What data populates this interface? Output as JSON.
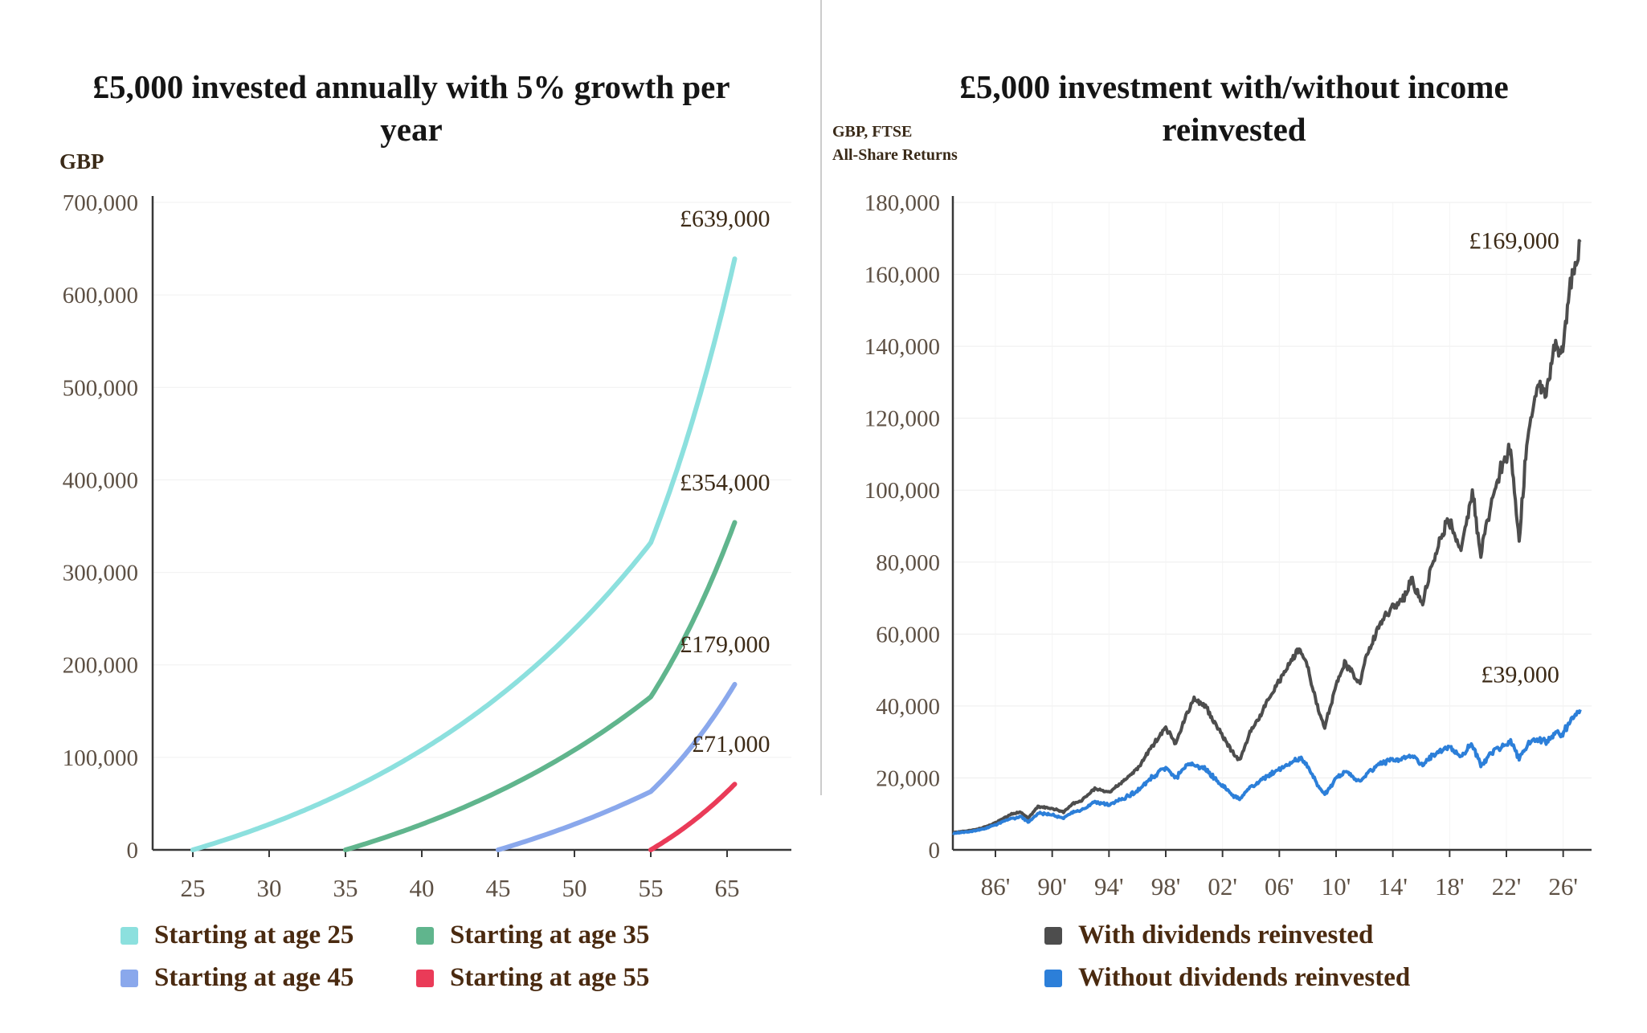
{
  "page": {
    "background": "#ffffff",
    "divider_color": "#cccccc",
    "text_color": "#151515",
    "tick_label_color": "#5d5044",
    "annotation_color": "#3c2a16",
    "legend_text_color": "#4a2a10",
    "axis_color": "#383838"
  },
  "chart_data": [
    {
      "type": "line",
      "title": "£5,000 invested annually with 5% growth per year",
      "unit_label": "GBP",
      "ylim": [
        0,
        700000
      ],
      "y_tick_values": [
        0,
        100000,
        200000,
        300000,
        400000,
        500000,
        600000,
        700000
      ],
      "y_tick_labels": [
        "0",
        "100,000",
        "200,000",
        "300,000",
        "400,000",
        "500,000",
        "600,000",
        "700,000"
      ],
      "x_tick_ages": [
        25,
        30,
        35,
        40,
        45,
        50,
        55,
        65
      ],
      "x_tick_labels": [
        "25",
        "30",
        "35",
        "40",
        "45",
        "50",
        "55",
        "65"
      ],
      "grid": "faint-horizontal",
      "legend_position": "bottom",
      "model": {
        "annual_contribution": 5000,
        "growth_rate": 0.05,
        "end_age": 66
      },
      "series": [
        {
          "name": "Starting at age 25",
          "color": "#8CE0DE",
          "start_age": 25,
          "end_value": 639000,
          "end_label": "£639,000"
        },
        {
          "name": "Starting at age 35",
          "color": "#60B58D",
          "start_age": 35,
          "end_value": 354000,
          "end_label": "£354,000"
        },
        {
          "name": "Starting at age 45",
          "color": "#8AA8EC",
          "start_age": 45,
          "end_value": 179000,
          "end_label": "£179,000"
        },
        {
          "name": "Starting at age 55",
          "color": "#EA3B58",
          "start_age": 55,
          "end_value": 71000,
          "end_label": "£71,000"
        }
      ]
    },
    {
      "type": "line",
      "title": "£5,000 investment with/without income reinvested",
      "unit_label_lines": [
        "GBP, FTSE",
        "All-Share Returns"
      ],
      "ylim": [
        0,
        180000
      ],
      "y_tick_values": [
        0,
        20000,
        40000,
        60000,
        80000,
        100000,
        120000,
        140000,
        160000,
        180000
      ],
      "y_tick_labels": [
        "0",
        "20,000",
        "40,000",
        "60,000",
        "80,000",
        "100,000",
        "120,000",
        "140,000",
        "160,000",
        "180,000"
      ],
      "x_tick_years": [
        1986,
        1990,
        1994,
        1998,
        2002,
        2006,
        2010,
        2014,
        2018,
        2022,
        2026
      ],
      "x_tick_labels": [
        "86'",
        "90'",
        "94'",
        "98'",
        "02'",
        "06'",
        "10'",
        "14'",
        "18'",
        "22'",
        "26'"
      ],
      "grid": "faint",
      "legend_position": "bottom",
      "series": [
        {
          "name": "With dividends reinvested",
          "color": "#4D4D4D",
          "end_value": 169000,
          "end_label": "£169,000",
          "points": {
            "x": [
              1983,
              1984,
              1985,
              1986,
              1987,
              1987.8,
              1988.3,
              1989,
              1990,
              1990.8,
              1991.5,
              1992,
              1993,
              1994,
              1995,
              1996,
              1997,
              1998,
              1998.7,
              1999.5,
              2000,
              2000.8,
              2001.8,
              2002.8,
              2003.2,
              2004,
              2005,
              2006,
              2007.4,
              2007.9,
              2008.9,
              2009.2,
              2010,
              2010.6,
              2011.7,
              2012,
              2013,
              2013.7,
              2014.8,
              2015.3,
              2016.1,
              2016.8,
              2017.9,
              2018.8,
              2019.6,
              2020.2,
              2020.9,
              2021.6,
              2022.3,
              2022.9,
              2023.5,
              2024.3,
              2024.8,
              2025.4,
              2025.9,
              2026.5,
              2027.2
            ],
            "y": [
              4800,
              5300,
              6000,
              7500,
              9800,
              10500,
              8800,
              12000,
              11500,
              10500,
              13000,
              13500,
              17000,
              16000,
              19000,
              22500,
              28500,
              34000,
              29500,
              38000,
              42000,
              40000,
              33000,
              26500,
              25000,
              33000,
              40000,
              47000,
              56000,
              52000,
              37000,
              34000,
              46000,
              52000,
              46000,
              52000,
              62000,
              66000,
              70000,
              75000,
              69000,
              80000,
              92000,
              83000,
              100000,
              82000,
              96000,
              106000,
              112000,
              86000,
              116000,
              130000,
              125000,
              142000,
              138000,
              156000,
              169000
            ]
          }
        },
        {
          "name": "Without dividends reinvested",
          "color": "#2C7FD9",
          "end_value": 39000,
          "end_label": "£39,000",
          "points": {
            "x": [
              1983,
              1984,
              1985,
              1986,
              1987,
              1987.8,
              1988.3,
              1989,
              1990,
              1990.8,
              1991.5,
              1992,
              1993,
              1994,
              1995,
              1996,
              1997,
              1998,
              1998.7,
              1999.5,
              2000,
              2000.8,
              2001.8,
              2002.8,
              2003.2,
              2004,
              2005,
              2006,
              2007.4,
              2007.9,
              2008.9,
              2009.2,
              2010,
              2010.6,
              2011.7,
              2012,
              2013,
              2013.7,
              2014.8,
              2015.3,
              2016.1,
              2016.8,
              2017.9,
              2018.8,
              2019.6,
              2020.2,
              2020.9,
              2021.6,
              2022.3,
              2022.9,
              2023.5,
              2024.3,
              2024.8,
              2025.4,
              2025.9,
              2026.5,
              2027.2
            ],
            "y": [
              4600,
              5000,
              5600,
              6900,
              8600,
              9200,
              7700,
              10200,
              9700,
              8900,
              10600,
              10900,
              13300,
              12400,
              14300,
              16400,
              20000,
              23000,
              19800,
              23800,
              23500,
              22500,
              18500,
              15000,
              14200,
              17500,
              20000,
              22500,
              25500,
              23800,
              16800,
              15500,
              19800,
              21800,
              18800,
              20800,
              23800,
              24800,
              25300,
              26200,
              23600,
              26200,
              28800,
              25800,
              29500,
              23200,
              26800,
              28800,
              29800,
              25600,
              29200,
              30800,
              29800,
              32500,
              31800,
              35500,
              39000
            ]
          }
        }
      ]
    }
  ]
}
